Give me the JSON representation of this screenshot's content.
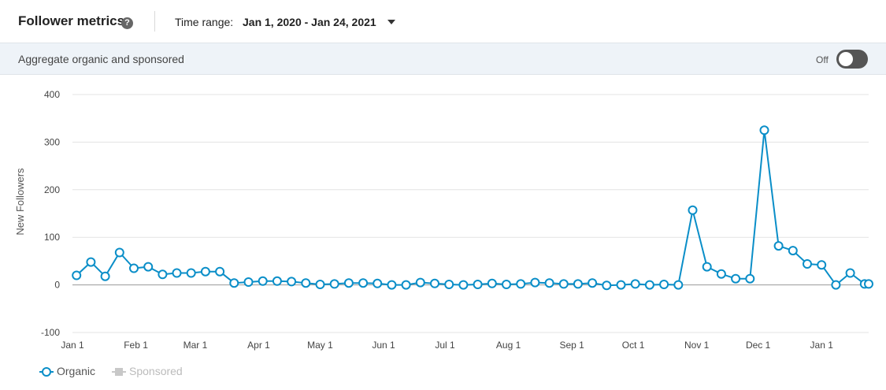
{
  "header": {
    "title": "Follower metrics",
    "help_icon": "?",
    "time_range_label": "Time range:",
    "time_range_value": "Jan 1, 2020 - Jan 24, 2021"
  },
  "aggregate_bar": {
    "label": "Aggregate organic and sponsored",
    "toggle_label": "Off",
    "toggle_on": false
  },
  "colors": {
    "organic": "#0a8ec8",
    "sponsored": "#c8c8c8",
    "gridline": "#e3e3e3",
    "zero_line": "#999999"
  },
  "legend": {
    "organic_label": "Organic",
    "sponsored_label": "Sponsored"
  },
  "chart_data": {
    "type": "line",
    "ylabel": "New Followers",
    "ylim": [
      -100,
      400
    ],
    "y_ticks": [
      400,
      300,
      200,
      100,
      0,
      -100
    ],
    "x_range": [
      "2020-01-01",
      "2021-01-24"
    ],
    "x_ticks": [
      {
        "label": "Jan 1",
        "date": "2020-01-01"
      },
      {
        "label": "Feb 1",
        "date": "2020-02-01"
      },
      {
        "label": "Mar 1",
        "date": "2020-03-01"
      },
      {
        "label": "Apr 1",
        "date": "2020-04-01"
      },
      {
        "label": "May 1",
        "date": "2020-05-01"
      },
      {
        "label": "Jun 1",
        "date": "2020-06-01"
      },
      {
        "label": "Jul 1",
        "date": "2020-07-01"
      },
      {
        "label": "Aug 1",
        "date": "2020-08-01"
      },
      {
        "label": "Sep 1",
        "date": "2020-09-01"
      },
      {
        "label": "Oct 1",
        "date": "2020-10-01"
      },
      {
        "label": "Nov 1",
        "date": "2020-11-01"
      },
      {
        "label": "Dec 1",
        "date": "2020-12-01"
      },
      {
        "label": "Jan 1",
        "date": "2021-01-01"
      }
    ],
    "grid": true,
    "legend_position": "bottom-left",
    "series": [
      {
        "name": "Organic",
        "x": [
          "2020-01-03",
          "2020-01-10",
          "2020-01-17",
          "2020-01-24",
          "2020-01-31",
          "2020-02-07",
          "2020-02-14",
          "2020-02-21",
          "2020-02-28",
          "2020-03-06",
          "2020-03-13",
          "2020-03-20",
          "2020-03-27",
          "2020-04-03",
          "2020-04-10",
          "2020-04-17",
          "2020-04-24",
          "2020-05-01",
          "2020-05-08",
          "2020-05-15",
          "2020-05-22",
          "2020-05-29",
          "2020-06-05",
          "2020-06-12",
          "2020-06-19",
          "2020-06-26",
          "2020-07-03",
          "2020-07-10",
          "2020-07-17",
          "2020-07-24",
          "2020-07-31",
          "2020-08-07",
          "2020-08-14",
          "2020-08-21",
          "2020-08-28",
          "2020-09-04",
          "2020-09-11",
          "2020-09-18",
          "2020-09-25",
          "2020-10-02",
          "2020-10-09",
          "2020-10-16",
          "2020-10-23",
          "2020-10-30",
          "2020-11-06",
          "2020-11-13",
          "2020-11-20",
          "2020-11-27",
          "2020-12-04",
          "2020-12-11",
          "2020-12-18",
          "2020-12-25",
          "2021-01-01",
          "2021-01-08",
          "2021-01-15",
          "2021-01-22",
          "2021-01-24"
        ],
        "values": [
          20,
          48,
          18,
          68,
          35,
          38,
          22,
          25,
          25,
          28,
          28,
          4,
          6,
          8,
          8,
          7,
          4,
          1,
          2,
          4,
          4,
          3,
          0,
          0,
          5,
          3,
          1,
          0,
          1,
          3,
          1,
          2,
          5,
          4,
          2,
          2,
          4,
          -1,
          0,
          2,
          0,
          1,
          0,
          157,
          38,
          23,
          13,
          13,
          325,
          82,
          72,
          44,
          42,
          0,
          25,
          2,
          2
        ]
      },
      {
        "name": "Sponsored",
        "x": [],
        "values": []
      }
    ]
  }
}
